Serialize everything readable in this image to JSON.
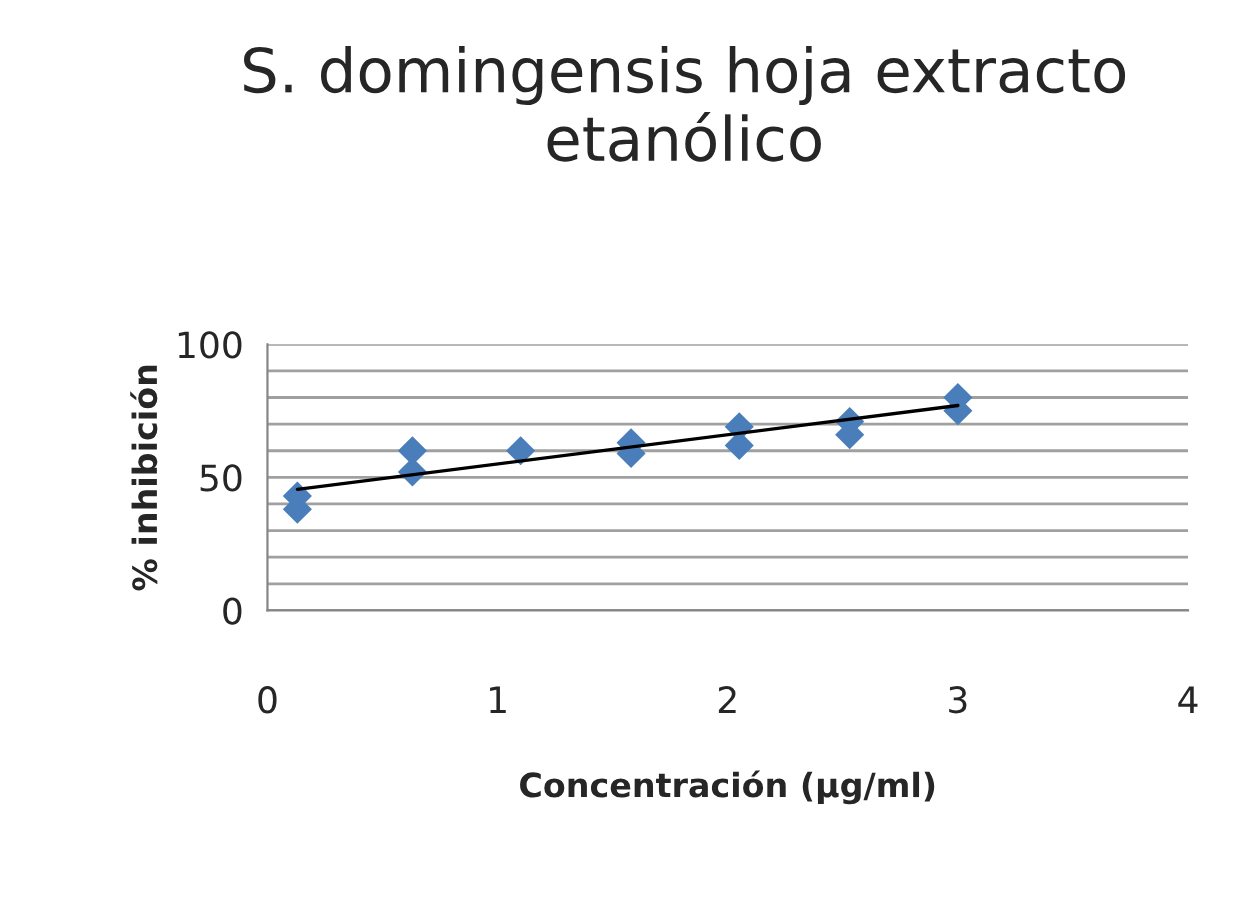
{
  "chart_data": {
    "type": "scatter",
    "title": "S. domingensis hoja extracto etanólico",
    "xlabel": "Concentración (µg/ml)",
    "ylabel": "% inhibición",
    "series": [
      {
        "color": "#4a7ebb",
        "marker": "diamond",
        "x": [
          0.13,
          0.13,
          0.63,
          0.63,
          1.1,
          1.58,
          1.58,
          2.05,
          2.05,
          2.53,
          2.53,
          3.0,
          3.0
        ],
        "values": [
          43,
          38,
          60,
          52,
          60,
          63,
          59,
          69,
          62,
          71,
          66,
          80,
          75
        ]
      },
      {
        "type": "line",
        "color": "#000000",
        "x": [
          0.13,
          3.0
        ],
        "values": [
          45.5,
          77
        ]
      }
    ],
    "xlim": [
      0,
      4
    ],
    "xticks": [
      0,
      1,
      2,
      3,
      4
    ],
    "ylim": [
      0,
      100
    ],
    "yticks": [
      0,
      {
        "value": 10,
        "label": null
      },
      {
        "value": 20,
        "label": null
      },
      {
        "value": 30,
        "label": null
      },
      {
        "value": 40,
        "label": null
      },
      50,
      {
        "value": 60,
        "label": null
      },
      {
        "value": 70,
        "label": null
      },
      {
        "value": 80,
        "label": null
      },
      {
        "value": 90,
        "label": null
      },
      100
    ],
    "grid": "y",
    "legend": false
  }
}
